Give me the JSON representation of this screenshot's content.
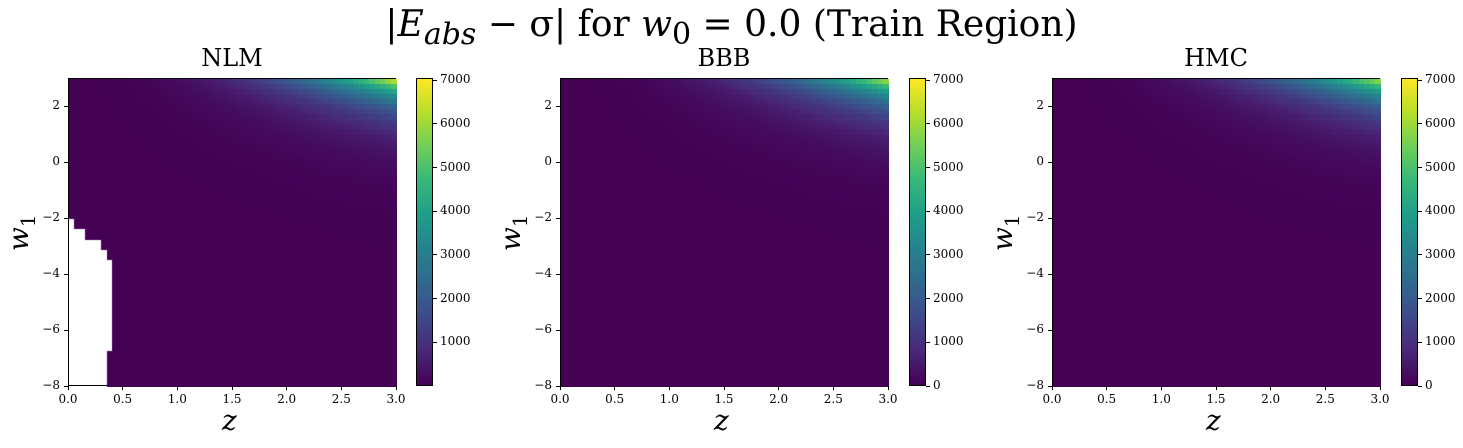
{
  "figure": {
    "suptitle": "|E_abs − σ| for w_0 = 0.0 (Train Region)",
    "suptitle_parts": {
      "bar_left": "|",
      "e": "E",
      "e_sub": "abs",
      "minus_sigma": " − σ|",
      "for_text": " for ",
      "w": "w",
      "w_sub": "0",
      "eq": " = 0.0 (Train Region)"
    }
  },
  "chart_data": [
    {
      "type": "heatmap",
      "title": "NLM",
      "xlabel": "z",
      "ylabel": "w1",
      "xlim": [
        0.0,
        3.0
      ],
      "ylim": [
        -8,
        3
      ],
      "x_ticks": [
        "0.0",
        "0.5",
        "1.0",
        "1.5",
        "2.0",
        "2.5",
        "3.0"
      ],
      "y_ticks": [
        "2",
        "0",
        "−2",
        "−4",
        "−6",
        "−8"
      ],
      "colorbar_ticks": [
        "1000",
        "2000",
        "3000",
        "4000",
        "5000",
        "6000",
        "7000"
      ],
      "vmin": 0,
      "vmax": 7050,
      "colormap": "viridis",
      "peak_value": 7000,
      "peak_location": {
        "z": 3.0,
        "w1": 3.0
      },
      "missing_region": "white (NaN) for z < 0.4 and w1 < -2"
    },
    {
      "type": "heatmap",
      "title": "BBB",
      "xlabel": "z",
      "ylabel": "w1",
      "xlim": [
        0.0,
        3.0
      ],
      "ylim": [
        -8,
        3
      ],
      "x_ticks": [
        "0.0",
        "0.5",
        "1.0",
        "1.5",
        "2.0",
        "2.5",
        "3.0"
      ],
      "y_ticks": [
        "2",
        "0",
        "−2",
        "−4",
        "−6",
        "−8"
      ],
      "colorbar_ticks": [
        "0",
        "1000",
        "2000",
        "3000",
        "4000",
        "5000",
        "6000",
        "7000"
      ],
      "vmin": 0,
      "vmax": 7050,
      "colormap": "viridis",
      "peak_value": 6600,
      "peak_location": {
        "z": 3.0,
        "w1": 3.0
      }
    },
    {
      "type": "heatmap",
      "title": "HMC",
      "xlabel": "z",
      "ylabel": "w1",
      "xlim": [
        0.0,
        3.0
      ],
      "ylim": [
        -8,
        3
      ],
      "x_ticks": [
        "0.0",
        "0.5",
        "1.0",
        "1.5",
        "2.0",
        "2.5",
        "3.0"
      ],
      "y_ticks": [
        "2",
        "0",
        "−2",
        "−4",
        "−6",
        "−8"
      ],
      "colorbar_ticks": [
        "0",
        "1000",
        "2000",
        "3000",
        "4000",
        "5000",
        "6000",
        "7000"
      ],
      "vmin": 0,
      "vmax": 7050,
      "colormap": "viridis",
      "peak_value": 6500,
      "peak_location": {
        "z": 3.0,
        "w1": 3.0
      }
    }
  ]
}
